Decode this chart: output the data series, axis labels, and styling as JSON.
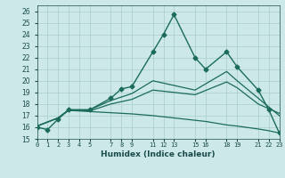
{
  "xlabel": "Humidex (Indice chaleur)",
  "bg_color": "#cce8e8",
  "grid_color": "#aacccc",
  "line_color": "#1a6b5a",
  "xlim": [
    0,
    23
  ],
  "ylim": [
    15,
    26.5
  ],
  "yticks": [
    15,
    16,
    17,
    18,
    19,
    20,
    21,
    22,
    23,
    24,
    25,
    26
  ],
  "xticks": [
    0,
    1,
    2,
    3,
    4,
    5,
    7,
    8,
    9,
    11,
    12,
    13,
    15,
    16,
    18,
    19,
    21,
    22,
    23
  ],
  "xtick_labels": [
    "0",
    "1",
    "2",
    "3",
    "4",
    "5",
    "7",
    "8",
    "9",
    "11",
    "12",
    "13",
    "15",
    "16",
    "18",
    "19",
    "21",
    "22",
    "23"
  ],
  "lines": [
    {
      "x": [
        0,
        1,
        2,
        3,
        5,
        7,
        8,
        9,
        11,
        12,
        13,
        15,
        16,
        18,
        19,
        21,
        22,
        23
      ],
      "y": [
        16.0,
        15.8,
        16.7,
        17.5,
        17.5,
        18.5,
        19.3,
        19.5,
        22.5,
        24.0,
        25.7,
        22.0,
        21.0,
        22.5,
        21.2,
        19.2,
        17.5,
        15.5
      ],
      "marker": "D",
      "markersize": 2.5,
      "linewidth": 1.0
    },
    {
      "x": [
        0,
        2,
        3,
        5,
        7,
        8,
        9,
        11,
        15,
        18,
        19,
        21,
        23
      ],
      "y": [
        16.1,
        16.8,
        17.5,
        17.5,
        18.3,
        18.6,
        18.9,
        20.0,
        19.2,
        20.8,
        20.0,
        18.5,
        17.0
      ],
      "marker": null,
      "markersize": 0,
      "linewidth": 0.9
    },
    {
      "x": [
        0,
        2,
        3,
        5,
        7,
        8,
        9,
        11,
        15,
        18,
        19,
        21,
        23
      ],
      "y": [
        16.1,
        16.8,
        17.5,
        17.4,
        18.0,
        18.2,
        18.4,
        19.2,
        18.8,
        19.9,
        19.4,
        18.0,
        17.2
      ],
      "marker": null,
      "markersize": 0,
      "linewidth": 0.9
    },
    {
      "x": [
        0,
        2,
        3,
        5,
        7,
        8,
        9,
        11,
        15,
        16,
        18,
        19,
        21,
        22,
        23
      ],
      "y": [
        16.1,
        16.8,
        17.45,
        17.35,
        17.25,
        17.2,
        17.15,
        17.0,
        16.6,
        16.5,
        16.2,
        16.1,
        15.85,
        15.7,
        15.5
      ],
      "marker": null,
      "markersize": 0,
      "linewidth": 0.9
    }
  ]
}
